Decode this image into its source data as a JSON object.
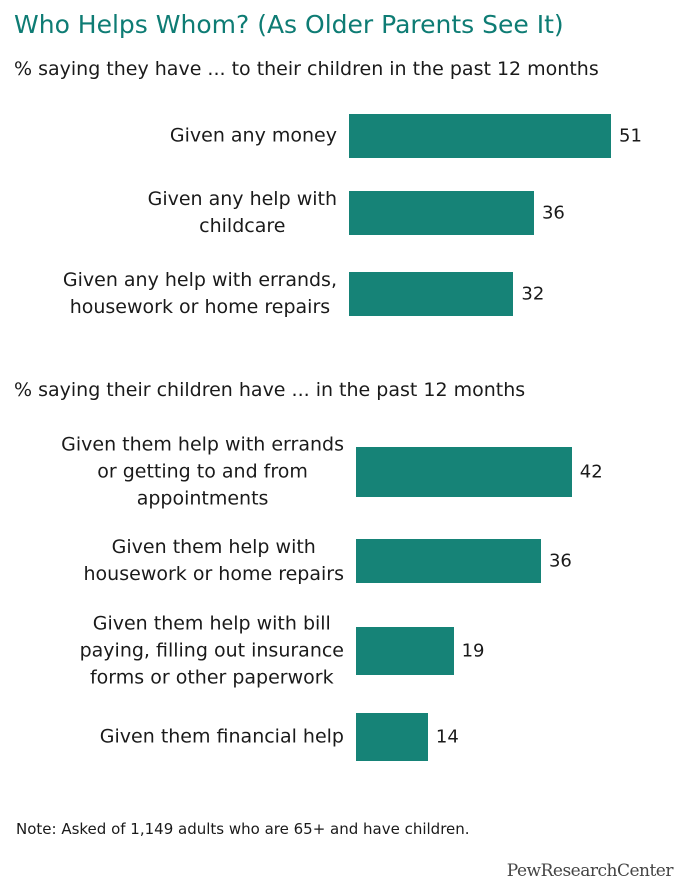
{
  "chart_data": {
    "type": "bar",
    "orientation": "horizontal",
    "title": "Who Helps Whom? (As Older Parents See It)",
    "groups": [
      {
        "subtitle": "% saying they have ... to their children in the past 12 months",
        "categories": [
          [
            "Given any money"
          ],
          [
            "Given any help with",
            "childcare"
          ],
          [
            "Given any help with errands,",
            "housework or home repairs"
          ]
        ],
        "values": [
          51,
          36,
          32
        ]
      },
      {
        "subtitle": "% saying their children have ... in the past 12 months",
        "categories": [
          [
            "Given them help with errands",
            "or getting to and from",
            "appointments"
          ],
          [
            "Given them help with",
            "housework or home repairs"
          ],
          [
            "Given them help with bill",
            "paying, filling out insurance",
            "forms or other paperwork"
          ],
          [
            "Given them financial help"
          ]
        ],
        "values": [
          42,
          36,
          19,
          14
        ]
      }
    ],
    "colors": {
      "bar": "#168377",
      "title": "#0e7c74"
    }
  },
  "note": "Note: Asked of 1,149 adults who are 65+ and have children.",
  "source_logo": "PewResearchCenter"
}
